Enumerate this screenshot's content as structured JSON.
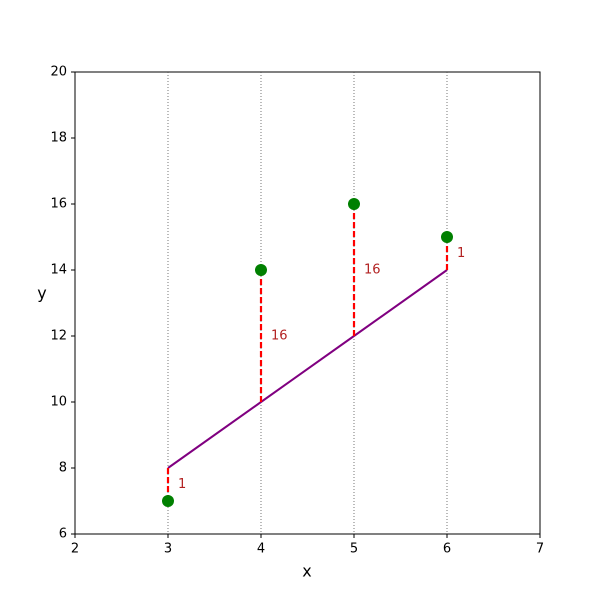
{
  "chart_data": {
    "type": "scatter",
    "x_label": "x",
    "y_label": "y",
    "x": [
      3,
      4,
      5,
      6
    ],
    "y": [
      7,
      14,
      16,
      15
    ],
    "point_color": "green",
    "fitted": [
      8,
      10,
      12,
      14
    ],
    "line_color": "purple",
    "squared_errors": [
      1,
      16,
      16,
      1
    ],
    "residual_color": "red",
    "residual_label_color": "#b22222",
    "xlim": [
      2,
      7
    ],
    "ylim": [
      6,
      20
    ],
    "xticks": [
      2,
      3,
      4,
      5,
      6,
      7
    ],
    "yticks": [
      6,
      8,
      10,
      12,
      14,
      16,
      18,
      20
    ]
  }
}
